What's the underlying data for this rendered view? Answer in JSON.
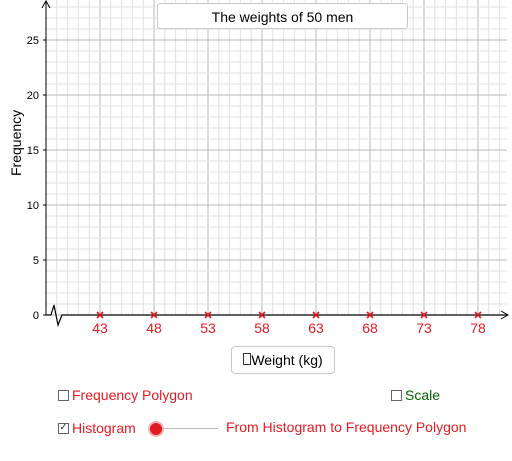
{
  "title": "The weights of 50 men",
  "y_axis_label": "Frequency",
  "x_axis_label": "Weight (kg)",
  "x_axis_label_icon": "missing-glyph-box",
  "checkboxes": {
    "frequency_polygon": {
      "label": "Frequency Polygon",
      "checked": false
    },
    "scale": {
      "label": "Scale",
      "checked": false
    },
    "histogram": {
      "label": "Histogram",
      "checked": true
    }
  },
  "slider": {
    "label": "From Histogram to Frequency Polygon",
    "value": 0
  },
  "colors": {
    "accent_red": "#e31b23",
    "scale_green": "#006400",
    "grid": "#d0d0d0"
  },
  "chart_data": {
    "type": "histogram",
    "x_ticks": [
      "43",
      "48",
      "53",
      "58",
      "63",
      "68",
      "73",
      "78"
    ],
    "x_values": [
      43,
      48,
      53,
      58,
      63,
      68,
      73,
      78
    ],
    "y_ticks": [
      "0",
      "5",
      "10",
      "15",
      "20",
      "25"
    ],
    "ylim": [
      0,
      28
    ],
    "grid": true,
    "axis_break": true
  }
}
